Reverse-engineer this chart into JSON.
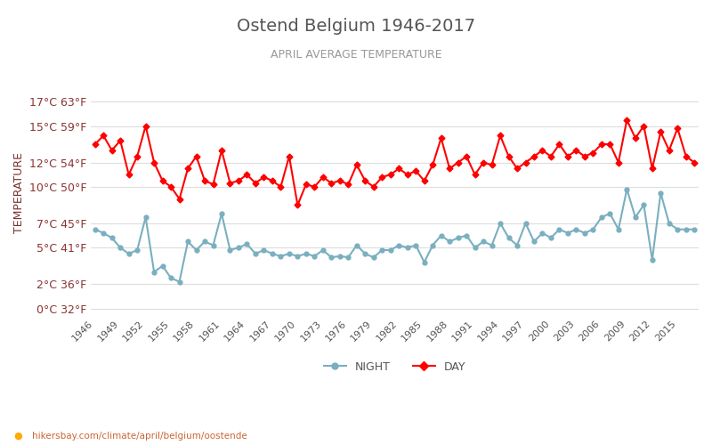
{
  "title": "Ostend Belgium 1946-2017",
  "subtitle": "APRIL AVERAGE TEMPERATURE",
  "ylabel": "TEMPERATURE",
  "footer": "hikersbay.com/climate/april/belgium/oostende",
  "years": [
    1946,
    1947,
    1948,
    1949,
    1950,
    1951,
    1952,
    1953,
    1954,
    1955,
    1956,
    1957,
    1958,
    1959,
    1960,
    1961,
    1962,
    1963,
    1964,
    1965,
    1966,
    1967,
    1968,
    1969,
    1970,
    1971,
    1972,
    1973,
    1974,
    1975,
    1976,
    1977,
    1978,
    1979,
    1980,
    1981,
    1982,
    1983,
    1984,
    1985,
    1986,
    1987,
    1988,
    1989,
    1990,
    1991,
    1992,
    1993,
    1994,
    1995,
    1996,
    1997,
    1998,
    1999,
    2000,
    2001,
    2002,
    2003,
    2004,
    2005,
    2006,
    2007,
    2008,
    2009,
    2010,
    2011,
    2012,
    2013,
    2014,
    2015,
    2016,
    2017
  ],
  "day_temps": [
    13.5,
    14.2,
    13.0,
    13.8,
    11.0,
    12.5,
    15.0,
    12.0,
    10.5,
    10.0,
    9.0,
    11.5,
    12.5,
    10.5,
    10.2,
    13.0,
    10.3,
    10.5,
    11.0,
    10.3,
    10.8,
    10.5,
    10.0,
    12.5,
    8.5,
    10.2,
    10.0,
    10.8,
    10.3,
    10.5,
    10.2,
    11.8,
    10.5,
    10.0,
    10.8,
    11.0,
    11.5,
    11.0,
    11.3,
    10.5,
    11.8,
    14.0,
    11.5,
    12.0,
    12.5,
    11.0,
    12.0,
    11.8,
    14.2,
    12.5,
    11.5,
    12.0,
    12.5,
    13.0,
    12.5,
    13.5,
    12.5,
    13.0,
    12.5,
    12.8,
    13.5,
    13.5,
    12.0,
    15.5,
    14.0,
    15.0,
    11.5,
    14.5,
    13.0,
    14.8,
    12.5,
    12.0
  ],
  "night_temps": [
    6.5,
    6.2,
    5.8,
    5.0,
    4.5,
    4.8,
    7.5,
    3.0,
    3.5,
    2.5,
    2.2,
    5.5,
    4.8,
    5.5,
    5.2,
    7.8,
    4.8,
    5.0,
    5.3,
    4.5,
    4.8,
    4.5,
    4.3,
    4.5,
    4.3,
    4.5,
    4.3,
    4.8,
    4.2,
    4.3,
    4.2,
    5.2,
    4.5,
    4.2,
    4.8,
    4.8,
    5.2,
    5.0,
    5.2,
    3.8,
    5.2,
    6.0,
    5.5,
    5.8,
    6.0,
    5.0,
    5.5,
    5.2,
    7.0,
    5.8,
    5.2,
    7.0,
    5.5,
    6.2,
    5.8,
    6.5,
    6.2,
    6.5,
    6.2,
    6.5,
    7.5,
    7.8,
    6.5,
    9.8,
    7.5,
    8.5,
    4.0,
    9.5,
    7.0,
    6.5,
    6.5,
    6.5
  ],
  "ytick_vals": [
    0,
    2,
    5,
    7,
    10,
    12,
    15,
    17
  ],
  "ytick_labels": [
    "0°C 32°F",
    "2°C 36°F",
    "5°C 41°F",
    "7°C 45°F",
    "10°C 50°F",
    "12°C 54°F",
    "15°C 59°F",
    "17°C 63°F"
  ],
  "day_color": "#ff0000",
  "night_color": "#7aafc0",
  "title_color": "#555555",
  "subtitle_color": "#999999",
  "ylabel_color": "#7a3030",
  "tick_label_color": "#8b3333",
  "bg_color": "#ffffff",
  "footer_color": "#cc6633",
  "footer_dot_color": "#ffaa00",
  "xtick_step": 3,
  "ylim": [
    -0.5,
    19.5
  ]
}
